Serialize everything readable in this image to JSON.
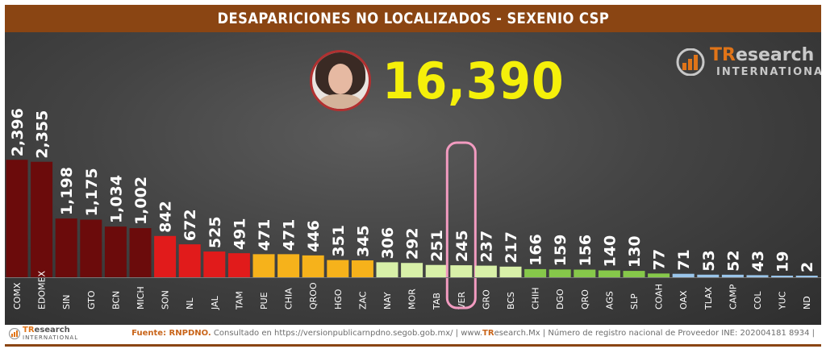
{
  "header": {
    "title": "DESAPARICIONES NO LOCALIZADOS - SEXENIO CSP"
  },
  "total": {
    "value": "16,390",
    "avatar_icon": "person-portrait"
  },
  "logo": {
    "name_prefix": "TR",
    "name_rest": "esearch",
    "subtitle": "INTERNATIONAL"
  },
  "footer": {
    "logo_prefix": "TR",
    "logo_rest": "esearch",
    "logo_subtitle": "INTERNATIONAL",
    "source_label": "Fuente: RNPDNO.",
    "source_text": " Consultado en https://versionpublicarnpdno.segob.gob.mx/ | www.",
    "source_brand": "TR",
    "source_rest": "esearch.Mx | Número de registro nacional de Proveedor INE: 202004181 8934 |"
  },
  "chart_data": {
    "type": "bar",
    "title": "DESAPARICIONES NO LOCALIZADOS - SEXENIO CSP",
    "categories": [
      "COMX",
      "EDOMEX",
      "SIN",
      "GTO",
      "BCN",
      "MICH",
      "SON",
      "NL",
      "JAL",
      "TAM",
      "PUE",
      "CHIA",
      "QROO",
      "HGO",
      "ZAC",
      "NAY",
      "MOR",
      "TAB",
      "VER",
      "GRO",
      "BCS",
      "CHIH",
      "DGO",
      "QRO",
      "AGS",
      "SLP",
      "COAH",
      "OAX",
      "TLAX",
      "CAMP",
      "COL",
      "YUC",
      "ND"
    ],
    "value_labels": [
      "2,396",
      "2,355",
      "1,198",
      "1,175",
      "1,034",
      "1,002",
      "842",
      "672",
      "525",
      "491",
      "471",
      "471",
      "446",
      "351",
      "345",
      "306",
      "292",
      "251",
      "245",
      "237",
      "217",
      "166",
      "159",
      "156",
      "140",
      "130",
      "77",
      "71",
      "53",
      "52",
      "43",
      "19",
      "2"
    ],
    "values": [
      2396,
      2355,
      1198,
      1175,
      1034,
      1002,
      842,
      672,
      525,
      491,
      471,
      471,
      446,
      351,
      345,
      306,
      292,
      251,
      245,
      237,
      217,
      166,
      159,
      156,
      140,
      130,
      77,
      71,
      53,
      52,
      43,
      19,
      2
    ],
    "colors": [
      "#6b0b0b",
      "#6b0b0b",
      "#6b0b0b",
      "#6b0b0b",
      "#6b0b0b",
      "#6b0b0b",
      "#e11b1b",
      "#e11b1b",
      "#e11b1b",
      "#e11b1b",
      "#f6b21b",
      "#f6b21b",
      "#f6b21b",
      "#f6b21b",
      "#f6b21b",
      "#d8f0a8",
      "#d8f0a8",
      "#d8f0a8",
      "#d8f0a8",
      "#d8f0a8",
      "#d8f0a8",
      "#86c84a",
      "#86c84a",
      "#86c84a",
      "#86c84a",
      "#86c84a",
      "#86c84a",
      "#9ac5ea",
      "#9ac5ea",
      "#9ac5ea",
      "#9ac5ea",
      "#9ac5ea",
      "#9ac5ea"
    ],
    "highlight": "VER",
    "highlight_color": "#f29bc0",
    "label_color": "#ffffff",
    "ylim": [
      0,
      2400
    ],
    "grid": false
  }
}
